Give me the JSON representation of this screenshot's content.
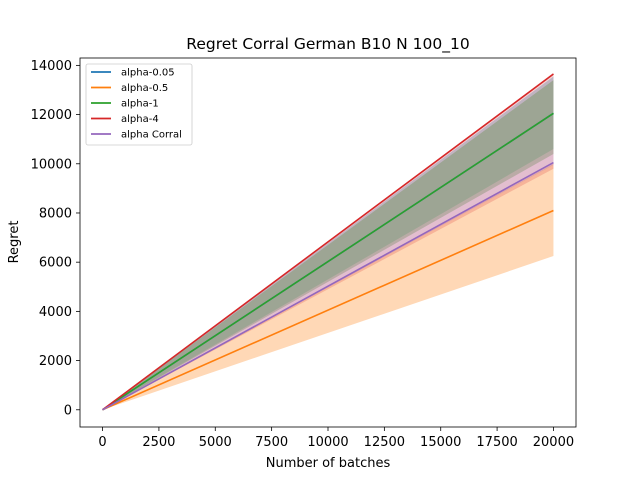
{
  "chart_data": {
    "type": "line",
    "title": "Regret Corral German B10 N 100_10",
    "xlabel": "Number of batches",
    "ylabel": "Regret",
    "xlim": [
      -1000,
      21000
    ],
    "ylim": [
      -700,
      14300
    ],
    "x_ticks": [
      0,
      2500,
      5000,
      7500,
      10000,
      12500,
      15000,
      17500,
      20000
    ],
    "y_ticks": [
      0,
      2000,
      4000,
      6000,
      8000,
      10000,
      12000,
      14000
    ],
    "x_tick_labels": [
      "0",
      "2500",
      "5000",
      "7500",
      "10000",
      "12500",
      "15000",
      "17500",
      "20000"
    ],
    "y_tick_labels": [
      "0",
      "2000",
      "4000",
      "6000",
      "8000",
      "10000",
      "12000",
      "14000"
    ],
    "grid": false,
    "legend_position": "top-left",
    "series": [
      {
        "name": "alpha-0.05",
        "color": "#1f77b4",
        "x": [
          0,
          20000
        ],
        "y": [
          0,
          12050
        ],
        "band_lower": [
          0,
          10600
        ],
        "band_upper": [
          0,
          13550
        ],
        "band_opacity": 0.3
      },
      {
        "name": "alpha-0.5",
        "color": "#ff7f0e",
        "x": [
          0,
          20000
        ],
        "y": [
          0,
          8100
        ],
        "band_lower": [
          0,
          6250
        ],
        "band_upper": [
          0,
          10000
        ],
        "band_opacity": 0.3
      },
      {
        "name": "alpha-1",
        "color": "#2ca02c",
        "x": [
          0,
          20000
        ],
        "y": [
          0,
          12050
        ],
        "band_lower": [
          0,
          10400
        ],
        "band_upper": [
          0,
          13400
        ],
        "band_opacity": 0.3
      },
      {
        "name": "alpha-4",
        "color": "#d62728",
        "x": [
          0,
          20000
        ],
        "y": [
          0,
          13650
        ],
        "band_lower": [
          0,
          9800
        ],
        "band_upper": [
          0,
          13700
        ],
        "band_opacity": 0.2
      },
      {
        "name": "alpha Corral",
        "color": "#9467bd",
        "x": [
          0,
          20000
        ],
        "y": [
          0,
          10050
        ],
        "band_lower": [
          0,
          9950
        ],
        "band_upper": [
          0,
          10600
        ],
        "band_opacity": 0.2
      }
    ]
  }
}
